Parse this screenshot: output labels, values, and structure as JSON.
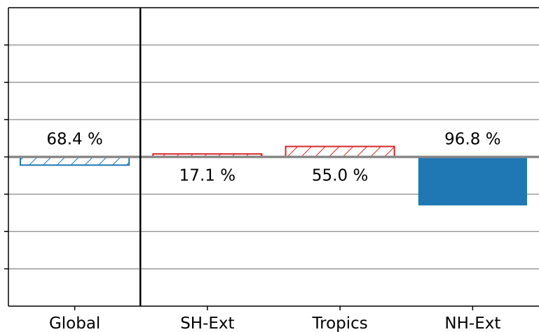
{
  "chart_data": {
    "type": "bar",
    "title": "",
    "xlabel": "",
    "ylabel": "",
    "categories": [
      "Global",
      "SH-Ext",
      "Tropics",
      "NH-Ext"
    ],
    "values": [
      -0.22,
      0.08,
      0.28,
      -1.3
    ],
    "ylim": [
      -4,
      4
    ],
    "grid": true,
    "zero_line": true,
    "separator_after_category": "Global",
    "bars": [
      {
        "category": "Global",
        "value": -0.22,
        "label": "68.4 %",
        "label_side": "above",
        "style": "hatched",
        "color": "#1f77b4"
      },
      {
        "category": "SH-Ext",
        "value": 0.08,
        "label": "17.1 %",
        "label_side": "below",
        "style": "hatched",
        "color": "#d62728"
      },
      {
        "category": "Tropics",
        "value": 0.28,
        "label": "55.0 %",
        "label_side": "below",
        "style": "hatched",
        "color": "#d62728"
      },
      {
        "category": "NH-Ext",
        "value": -1.3,
        "label": "96.8 %",
        "label_side": "above",
        "style": "solid",
        "color": "#1f77b4"
      }
    ]
  }
}
